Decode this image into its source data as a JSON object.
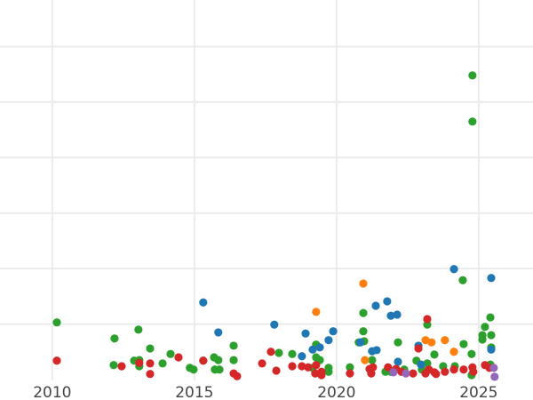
{
  "chart_data": {
    "type": "scatter",
    "title": "",
    "xlabel": "",
    "ylabel": "",
    "xlim": [
      2008.16,
      2026.91
    ],
    "ylim": [
      0,
      6.84
    ],
    "x_ticks": [
      "2010",
      "2015",
      "2020",
      "2025"
    ],
    "x_tick_values": [
      2010,
      2015,
      2020,
      2025
    ],
    "y_gridlines": [
      1,
      2,
      3,
      4,
      5,
      6
    ],
    "y_tick_labels_visible": false,
    "grid": true,
    "background": "#ffffff",
    "grid_color": "#ebebeb",
    "series": [
      {
        "color": "#2ca02c",
        "points": [
          [
            2010.16,
            1.03
          ],
          [
            2012.19,
            0.74
          ],
          [
            2012.16,
            0.26
          ],
          [
            2013.03,
            0.9
          ],
          [
            2012.88,
            0.34
          ],
          [
            2013.06,
            0.35
          ],
          [
            2013.06,
            0.24
          ],
          [
            2013.44,
            0.56
          ],
          [
            2013.88,
            0.29
          ],
          [
            2014.16,
            0.46
          ],
          [
            2014.84,
            0.21
          ],
          [
            2014.97,
            0.18
          ],
          [
            2015.31,
            0.34
          ],
          [
            2015.69,
            0.4
          ],
          [
            2015.84,
            0.35
          ],
          [
            2015.72,
            0.18
          ],
          [
            2015.88,
            0.18
          ],
          [
            2016.38,
            0.61
          ],
          [
            2016.38,
            0.35
          ],
          [
            2017.97,
            0.48
          ],
          [
            2018.44,
            0.46
          ],
          [
            2019.28,
            0.63
          ],
          [
            2019.28,
            0.4
          ],
          [
            2019.41,
            0.35
          ],
          [
            2019.16,
            0.21
          ],
          [
            2019.72,
            0.21
          ],
          [
            2019.72,
            0.14
          ],
          [
            2020.47,
            0.22
          ],
          [
            2020.94,
            1.2
          ],
          [
            2020.94,
            0.87
          ],
          [
            2020.97,
            0.69
          ],
          [
            2020.78,
            0.67
          ],
          [
            2021.25,
            0.35
          ],
          [
            2022.16,
            0.67
          ],
          [
            2022.81,
            0.34
          ],
          [
            2023.19,
            0.99
          ],
          [
            2023.19,
            0.29
          ],
          [
            2023.44,
            0.45
          ],
          [
            2023.75,
            0.24
          ],
          [
            2024.16,
            0.24
          ],
          [
            2024.47,
            0.64
          ],
          [
            2024.75,
            0.46
          ],
          [
            2024.75,
            0.08
          ],
          [
            2024.78,
            4.65
          ],
          [
            2024.78,
            5.48
          ],
          [
            2025.22,
            0.95
          ],
          [
            2025.13,
            0.72
          ],
          [
            2025.13,
            0.8
          ],
          [
            2025.41,
            1.12
          ],
          [
            2025.44,
            0.8
          ],
          [
            2025.44,
            0.58
          ],
          [
            2025.41,
            0.27
          ],
          [
            2021.91,
            0.14
          ],
          [
            2022.38,
            0.18
          ],
          [
            2023.0,
            0.18
          ],
          [
            2021.72,
            0.14
          ],
          [
            2024.44,
            1.79
          ]
        ]
      },
      {
        "color": "#1f77b4",
        "points": [
          [
            2015.31,
            1.39
          ],
          [
            2015.84,
            0.85
          ],
          [
            2017.81,
            0.99
          ],
          [
            2018.78,
            0.42
          ],
          [
            2018.91,
            0.83
          ],
          [
            2019.16,
            0.54
          ],
          [
            2019.41,
            0.58
          ],
          [
            2019.72,
            0.71
          ],
          [
            2019.88,
            0.87
          ],
          [
            2020.84,
            0.67
          ],
          [
            2021.25,
            0.51
          ],
          [
            2021.41,
            0.53
          ],
          [
            2021.38,
            1.33
          ],
          [
            2021.78,
            1.41
          ],
          [
            2021.91,
            1.15
          ],
          [
            2022.13,
            1.17
          ],
          [
            2022.16,
            0.32
          ],
          [
            2022.88,
            0.61
          ],
          [
            2024.13,
            1.99
          ],
          [
            2025.44,
            1.83
          ],
          [
            2025.44,
            0.54
          ],
          [
            2022.97,
            0.27
          ]
        ]
      },
      {
        "color": "#d62728",
        "points": [
          [
            2010.16,
            0.34
          ],
          [
            2012.44,
            0.24
          ],
          [
            2013.06,
            0.3
          ],
          [
            2013.44,
            0.1
          ],
          [
            2013.44,
            0.29
          ],
          [
            2014.44,
            0.4
          ],
          [
            2015.31,
            0.34
          ],
          [
            2016.38,
            0.11
          ],
          [
            2016.5,
            0.06
          ],
          [
            2017.38,
            0.29
          ],
          [
            2017.69,
            0.5
          ],
          [
            2017.88,
            0.16
          ],
          [
            2018.44,
            0.24
          ],
          [
            2018.78,
            0.24
          ],
          [
            2019.0,
            0.22
          ],
          [
            2019.28,
            0.26
          ],
          [
            2019.25,
            0.11
          ],
          [
            2019.47,
            0.08
          ],
          [
            2019.47,
            0.14
          ],
          [
            2020.47,
            0.11
          ],
          [
            2021.16,
            0.19
          ],
          [
            2021.22,
            0.11
          ],
          [
            2021.28,
            0.22
          ],
          [
            2021.81,
            0.22
          ],
          [
            2022.09,
            0.19
          ],
          [
            2022.28,
            0.14
          ],
          [
            2022.69,
            0.11
          ],
          [
            2022.88,
            0.56
          ],
          [
            2023.19,
            1.09
          ],
          [
            2023.13,
            0.11
          ],
          [
            2023.25,
            0.18
          ],
          [
            2023.44,
            0.13
          ],
          [
            2023.5,
            0.1
          ],
          [
            2023.81,
            0.14
          ],
          [
            2024.13,
            0.18
          ],
          [
            2024.47,
            0.18
          ],
          [
            2024.81,
            0.14
          ],
          [
            2024.78,
            0.22
          ],
          [
            2025.22,
            0.26
          ],
          [
            2025.38,
            0.21
          ]
        ]
      },
      {
        "color": "#ff7f0e",
        "points": [
          [
            2019.28,
            1.22
          ],
          [
            2020.94,
            1.73
          ],
          [
            2021.0,
            0.35
          ],
          [
            2023.13,
            0.71
          ],
          [
            2023.34,
            0.67
          ],
          [
            2023.81,
            0.71
          ],
          [
            2024.13,
            0.5
          ]
        ]
      },
      {
        "color": "#9467bd",
        "points": [
          [
            2022.0,
            0.13
          ],
          [
            2022.44,
            0.11
          ],
          [
            2025.53,
            0.21
          ],
          [
            2025.56,
            0.05
          ]
        ]
      }
    ]
  }
}
